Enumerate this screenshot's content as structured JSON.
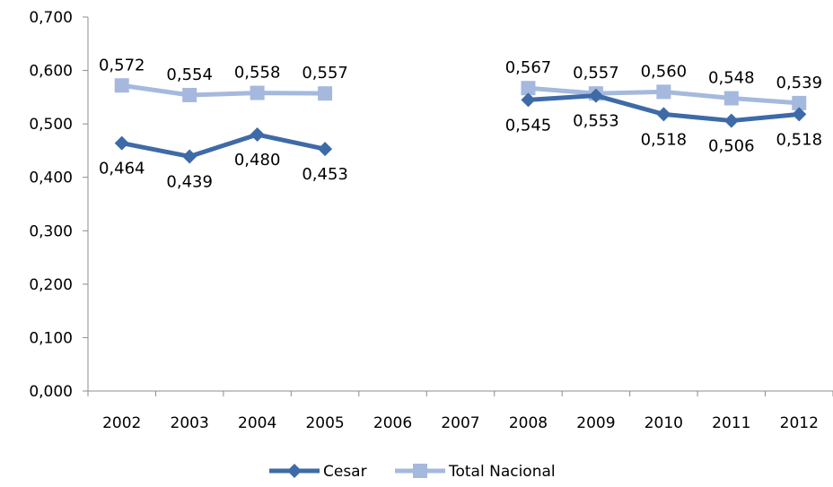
{
  "chart_data": {
    "type": "line",
    "categories": [
      "2002",
      "2003",
      "2004",
      "2005",
      "2006",
      "2007",
      "2008",
      "2009",
      "2010",
      "2011",
      "2012"
    ],
    "ylim": [
      0,
      0.7
    ],
    "yticks": [
      0,
      0.1,
      0.2,
      0.3,
      0.4,
      0.5,
      0.6,
      0.7
    ],
    "ytick_labels": [
      "0,000",
      "0,100",
      "0,200",
      "0,300",
      "0,400",
      "0,500",
      "0,600",
      "0,700"
    ],
    "grid": false,
    "legend_position": "bottom",
    "series": [
      {
        "name": "Cesar",
        "color": "#3e6aa8",
        "marker": "diamond",
        "values": [
          0.464,
          0.439,
          0.48,
          0.453,
          null,
          null,
          0.545,
          0.553,
          0.518,
          0.506,
          0.518
        ],
        "labels": [
          "0,464",
          "0,439",
          "0,480",
          "0,453",
          "",
          "",
          "0,545",
          "0,553",
          "0,518",
          "0,506",
          "0,518"
        ],
        "label_position": "below"
      },
      {
        "name": "Total Nacional",
        "color": "#a5b9de",
        "marker": "square",
        "values": [
          0.572,
          0.554,
          0.558,
          0.557,
          null,
          null,
          0.567,
          0.557,
          0.56,
          0.548,
          0.539
        ],
        "labels": [
          "0,572",
          "0,554",
          "0,558",
          "0,557",
          "",
          "",
          "0,567",
          "0,557",
          "0,560",
          "0,548",
          "0,539"
        ],
        "label_position": "above"
      }
    ]
  }
}
